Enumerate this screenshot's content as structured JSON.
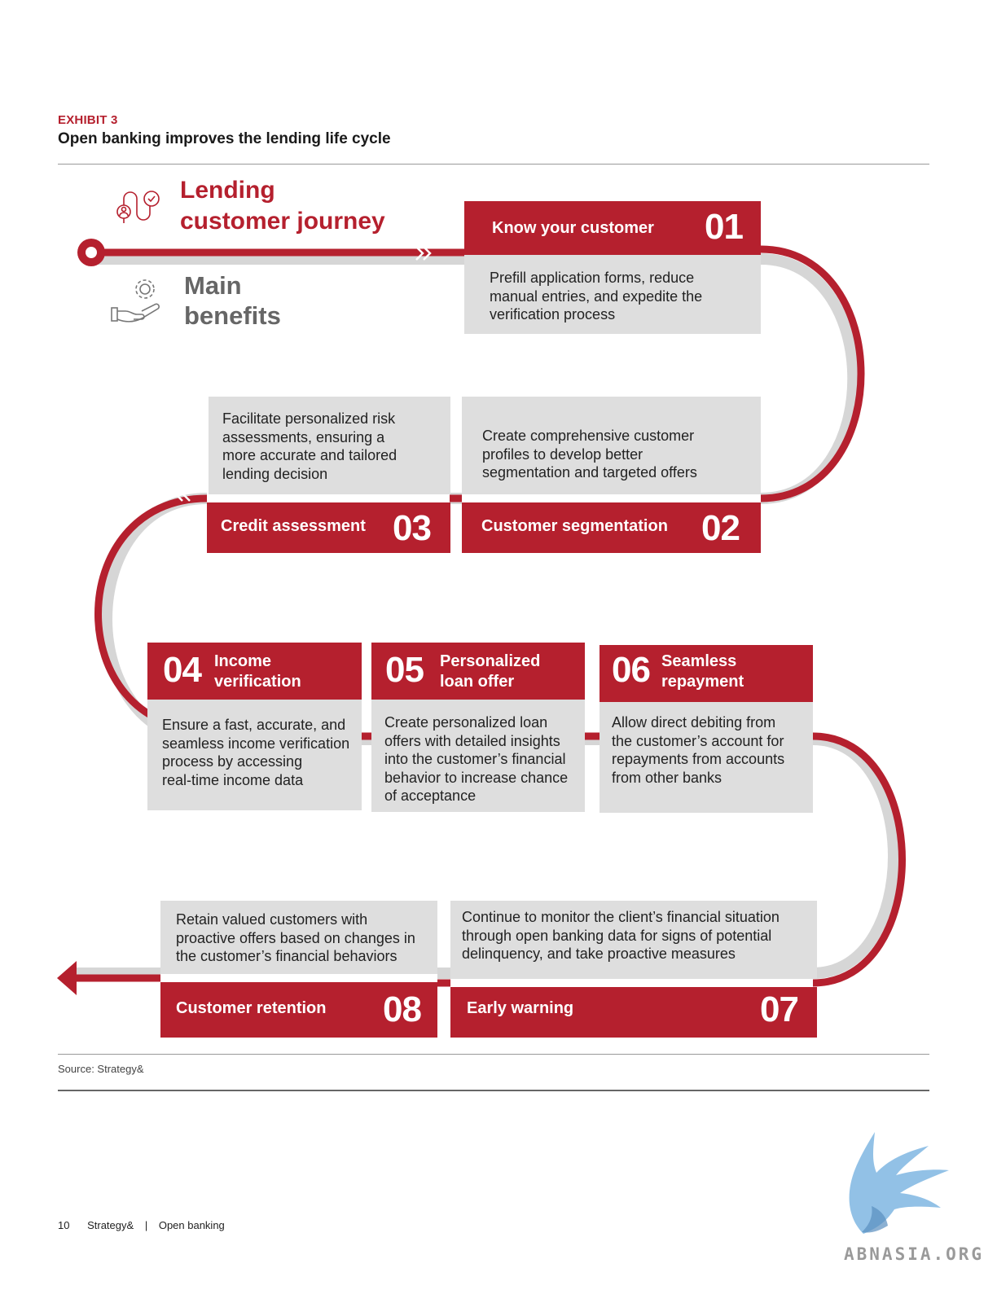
{
  "exhibit": {
    "label": "EXHIBIT 3",
    "title": "Open banking improves the lending life cycle"
  },
  "legend": {
    "journey_line1": "Lending",
    "journey_line2": "customer journey",
    "benefits_line1": "Main",
    "benefits_line2": "benefits",
    "journey_icon": "journey-route-icon",
    "benefits_icon": "hand-gear-icon"
  },
  "steps": [
    {
      "num": "01",
      "title": "Know your customer",
      "benefit": [
        "Prefill application forms, reduce",
        "manual entries, and expedite the",
        "verification process"
      ]
    },
    {
      "num": "02",
      "title": "Customer segmentation",
      "benefit": [
        "Create comprehensive customer",
        "profiles to develop better",
        "segmentation and targeted offers"
      ]
    },
    {
      "num": "03",
      "title": "Credit assessment",
      "benefit": [
        "Facilitate personalized risk",
        "assessments, ensuring a",
        "more accurate and tailored",
        "lending decision"
      ]
    },
    {
      "num": "04",
      "title": [
        "Income",
        "verification"
      ],
      "benefit": [
        "Ensure a fast, accurate, and",
        "seamless income verification",
        "process by accessing",
        "real-time income data"
      ]
    },
    {
      "num": "05",
      "title": [
        "Personalized",
        "loan offer"
      ],
      "benefit": [
        "Create personalized loan",
        "offers with detailed insights",
        "into the customer’s financial",
        "behavior to increase chance",
        "of acceptance"
      ]
    },
    {
      "num": "06",
      "title": [
        "Seamless",
        "repayment"
      ],
      "benefit": [
        "Allow direct debiting from",
        "the customer’s account for",
        "repayments from accounts",
        "from other banks"
      ]
    },
    {
      "num": "07",
      "title": "Early warning",
      "benefit": [
        "Continue to monitor the client’s financial situation",
        "through open banking data for signs of potential",
        "delinquency, and take proactive measures"
      ]
    },
    {
      "num": "08",
      "title": "Customer retention",
      "benefit": [
        "Retain valued customers with",
        "proactive offers based on changes in",
        "the customer’s financial behaviors"
      ]
    }
  ],
  "colors": {
    "accent": "#b5202e",
    "track": "#d6d6d6",
    "box": "#dedede",
    "benefits_text": "#666666"
  },
  "source": "Source: Strategy&",
  "footer": {
    "page": "10",
    "brand": "Strategy&",
    "separator": "|",
    "title": "Open banking"
  },
  "watermark": {
    "text": "ABNASIA.ORG",
    "icon": "griffin-logo-icon"
  }
}
